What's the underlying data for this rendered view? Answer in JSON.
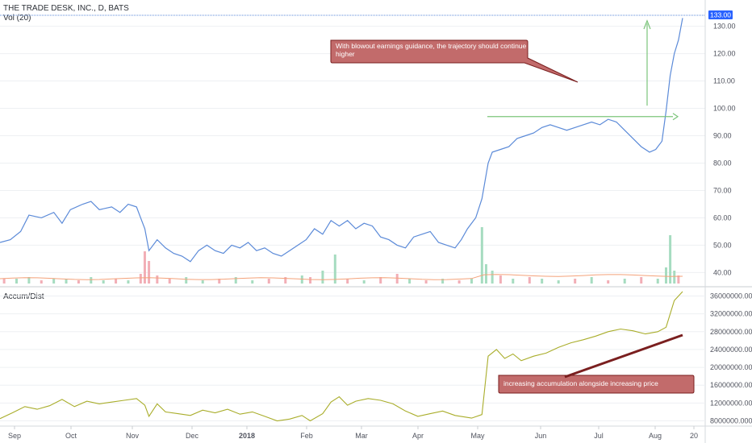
{
  "header": {
    "symbol": "THE TRADE DESK, INC., D, BATS",
    "volume_label": "Vol (20)",
    "indicator_label": "Accum/Dist",
    "last_price_badge": "133.00"
  },
  "annotations": {
    "upper_note_line1": "With blowout earnings guidance, the trajectory should continue",
    "upper_note_line2": "higher",
    "lower_note": "increasing accumulation alongside increasing price"
  },
  "colors": {
    "price_line": "#5b8ad8",
    "ad_line": "#a9ad2a",
    "volume_up": "#a6dcc0",
    "volume_down": "#f2aeb6",
    "volume_ma": "#f4a27a",
    "arrow": "#7bc47a",
    "callout_fill": "#c26b6b",
    "callout_border": "#7a1f1f",
    "badge": "#2962ff"
  },
  "chart_data": [
    {
      "type": "line",
      "title": "",
      "series_name": "Price",
      "y_ticks": [
        "133.00",
        "130.00",
        "120.00",
        "110.00",
        "100.00",
        "90.00",
        "80.00",
        "70.00",
        "60.00",
        "50.00",
        "40.00"
      ],
      "ylim": [
        36,
        134
      ],
      "x_ticks": [
        "Sep",
        "Oct",
        "Nov",
        "Dec",
        "2018",
        "Feb",
        "Mar",
        "Apr",
        "May",
        "Jun",
        "Jul",
        "Aug",
        "20"
      ],
      "price_series": [
        [
          0,
          51
        ],
        [
          5,
          52
        ],
        [
          10,
          55
        ],
        [
          14,
          61
        ],
        [
          20,
          60
        ],
        [
          26,
          62
        ],
        [
          30,
          58
        ],
        [
          34,
          63
        ],
        [
          40,
          65
        ],
        [
          44,
          66
        ],
        [
          48,
          63
        ],
        [
          54,
          64
        ],
        [
          58,
          62
        ],
        [
          62,
          65
        ],
        [
          66,
          64
        ],
        [
          68,
          60
        ],
        [
          70,
          56
        ],
        [
          72,
          48
        ],
        [
          76,
          52
        ],
        [
          80,
          49
        ],
        [
          84,
          47
        ],
        [
          88,
          46
        ],
        [
          92,
          44
        ],
        [
          96,
          48
        ],
        [
          100,
          50
        ],
        [
          104,
          48
        ],
        [
          108,
          47
        ],
        [
          112,
          50
        ],
        [
          116,
          49
        ],
        [
          120,
          51
        ],
        [
          124,
          48
        ],
        [
          128,
          49
        ],
        [
          132,
          47
        ],
        [
          136,
          46
        ],
        [
          140,
          48
        ],
        [
          144,
          50
        ],
        [
          148,
          52
        ],
        [
          152,
          56
        ],
        [
          156,
          54
        ],
        [
          160,
          59
        ],
        [
          164,
          57
        ],
        [
          168,
          59
        ],
        [
          172,
          56
        ],
        [
          176,
          58
        ],
        [
          180,
          57
        ],
        [
          184,
          53
        ],
        [
          188,
          52
        ],
        [
          192,
          50
        ],
        [
          196,
          49
        ],
        [
          200,
          53
        ],
        [
          204,
          54
        ],
        [
          208,
          55
        ],
        [
          212,
          51
        ],
        [
          216,
          50
        ],
        [
          220,
          49
        ],
        [
          223,
          52
        ],
        [
          226,
          56
        ],
        [
          230,
          60
        ],
        [
          233,
          67
        ],
        [
          236,
          80
        ],
        [
          238,
          84
        ],
        [
          242,
          85
        ],
        [
          246,
          86
        ],
        [
          250,
          89
        ],
        [
          254,
          90
        ],
        [
          258,
          91
        ],
        [
          262,
          93
        ],
        [
          266,
          94
        ],
        [
          270,
          93
        ],
        [
          274,
          92
        ],
        [
          278,
          93
        ],
        [
          282,
          94
        ],
        [
          286,
          95
        ],
        [
          290,
          94
        ],
        [
          294,
          96
        ],
        [
          298,
          95
        ],
        [
          302,
          92
        ],
        [
          306,
          89
        ],
        [
          310,
          86
        ],
        [
          314,
          84
        ],
        [
          317,
          85
        ],
        [
          320,
          88
        ],
        [
          322,
          99
        ],
        [
          324,
          112
        ],
        [
          326,
          120
        ],
        [
          328,
          125
        ],
        [
          330,
          133
        ]
      ],
      "volume_series": [
        [
          2,
          3,
          false
        ],
        [
          8,
          3,
          true
        ],
        [
          14,
          4,
          true
        ],
        [
          20,
          2,
          false
        ],
        [
          26,
          3,
          true
        ],
        [
          32,
          3,
          true
        ],
        [
          38,
          2,
          false
        ],
        [
          44,
          4,
          true
        ],
        [
          50,
          2,
          true
        ],
        [
          56,
          3,
          false
        ],
        [
          62,
          2,
          true
        ],
        [
          68,
          6,
          false
        ],
        [
          70,
          20,
          false
        ],
        [
          72,
          14,
          false
        ],
        [
          76,
          5,
          false
        ],
        [
          82,
          3,
          false
        ],
        [
          90,
          4,
          true
        ],
        [
          98,
          2,
          true
        ],
        [
          106,
          3,
          false
        ],
        [
          114,
          4,
          true
        ],
        [
          122,
          2,
          true
        ],
        [
          130,
          3,
          false
        ],
        [
          138,
          4,
          false
        ],
        [
          146,
          5,
          true
        ],
        [
          150,
          4,
          false
        ],
        [
          156,
          8,
          true
        ],
        [
          162,
          18,
          true
        ],
        [
          168,
          3,
          false
        ],
        [
          176,
          2,
          true
        ],
        [
          184,
          4,
          false
        ],
        [
          192,
          6,
          false
        ],
        [
          198,
          3,
          true
        ],
        [
          206,
          2,
          false
        ],
        [
          214,
          3,
          true
        ],
        [
          222,
          2,
          false
        ],
        [
          228,
          3,
          true
        ],
        [
          233,
          35,
          true
        ],
        [
          235,
          12,
          true
        ],
        [
          238,
          8,
          true
        ],
        [
          242,
          5,
          false
        ],
        [
          248,
          3,
          true
        ],
        [
          256,
          4,
          false
        ],
        [
          262,
          3,
          true
        ],
        [
          270,
          2,
          true
        ],
        [
          278,
          3,
          false
        ],
        [
          286,
          4,
          true
        ],
        [
          294,
          2,
          false
        ],
        [
          302,
          3,
          true
        ],
        [
          310,
          4,
          false
        ],
        [
          318,
          3,
          true
        ],
        [
          322,
          10,
          true
        ],
        [
          324,
          30,
          true
        ],
        [
          326,
          8,
          true
        ],
        [
          328,
          5,
          false
        ]
      ]
    },
    {
      "type": "line",
      "title": "",
      "series_name": "Accum/Dist",
      "y_ticks": [
        "36000000.0000",
        "32000000.0000",
        "28000000.0000",
        "24000000.0000",
        "20000000.0000",
        "16000000.0000",
        "12000000.0000",
        "8000000.0000"
      ],
      "ylim": [
        7000000,
        37000000
      ],
      "ad_series": [
        [
          0,
          8.5
        ],
        [
          6,
          9.8
        ],
        [
          12,
          11.2
        ],
        [
          18,
          10.6
        ],
        [
          24,
          11.4
        ],
        [
          30,
          12.8
        ],
        [
          36,
          11.2
        ],
        [
          42,
          12.4
        ],
        [
          48,
          11.8
        ],
        [
          54,
          12.2
        ],
        [
          60,
          12.6
        ],
        [
          66,
          13.0
        ],
        [
          70,
          11.5
        ],
        [
          72,
          9.0
        ],
        [
          76,
          11.8
        ],
        [
          80,
          10.0
        ],
        [
          86,
          9.6
        ],
        [
          92,
          9.2
        ],
        [
          98,
          10.4
        ],
        [
          104,
          9.8
        ],
        [
          110,
          10.6
        ],
        [
          116,
          9.5
        ],
        [
          122,
          10.0
        ],
        [
          128,
          9.0
        ],
        [
          134,
          8.0
        ],
        [
          140,
          8.4
        ],
        [
          146,
          9.2
        ],
        [
          150,
          8.0
        ],
        [
          156,
          9.6
        ],
        [
          160,
          12.2
        ],
        [
          164,
          13.4
        ],
        [
          168,
          11.5
        ],
        [
          172,
          12.4
        ],
        [
          178,
          13.0
        ],
        [
          184,
          12.6
        ],
        [
          190,
          11.8
        ],
        [
          196,
          10.2
        ],
        [
          202,
          9.0
        ],
        [
          208,
          9.6
        ],
        [
          214,
          10.2
        ],
        [
          220,
          9.2
        ],
        [
          228,
          8.6
        ],
        [
          233,
          9.4
        ],
        [
          236,
          22.5
        ],
        [
          240,
          24.0
        ],
        [
          244,
          22.0
        ],
        [
          248,
          23.0
        ],
        [
          252,
          21.5
        ],
        [
          258,
          22.5
        ],
        [
          264,
          23.2
        ],
        [
          270,
          24.5
        ],
        [
          276,
          25.5
        ],
        [
          282,
          26.2
        ],
        [
          288,
          27.0
        ],
        [
          294,
          28.0
        ],
        [
          300,
          28.6
        ],
        [
          306,
          28.2
        ],
        [
          312,
          27.5
        ],
        [
          318,
          28.0
        ],
        [
          322,
          29.0
        ],
        [
          326,
          35.0
        ],
        [
          330,
          37.0
        ]
      ]
    }
  ]
}
